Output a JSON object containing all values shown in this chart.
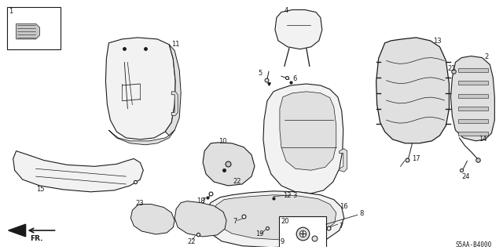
{
  "bg_color": "#ffffff",
  "diagram_code": "S5AA-B4000",
  "fig_width": 6.4,
  "fig_height": 3.19,
  "dpi": 100,
  "line_color": "#1a1a1a",
  "lw": 0.7
}
